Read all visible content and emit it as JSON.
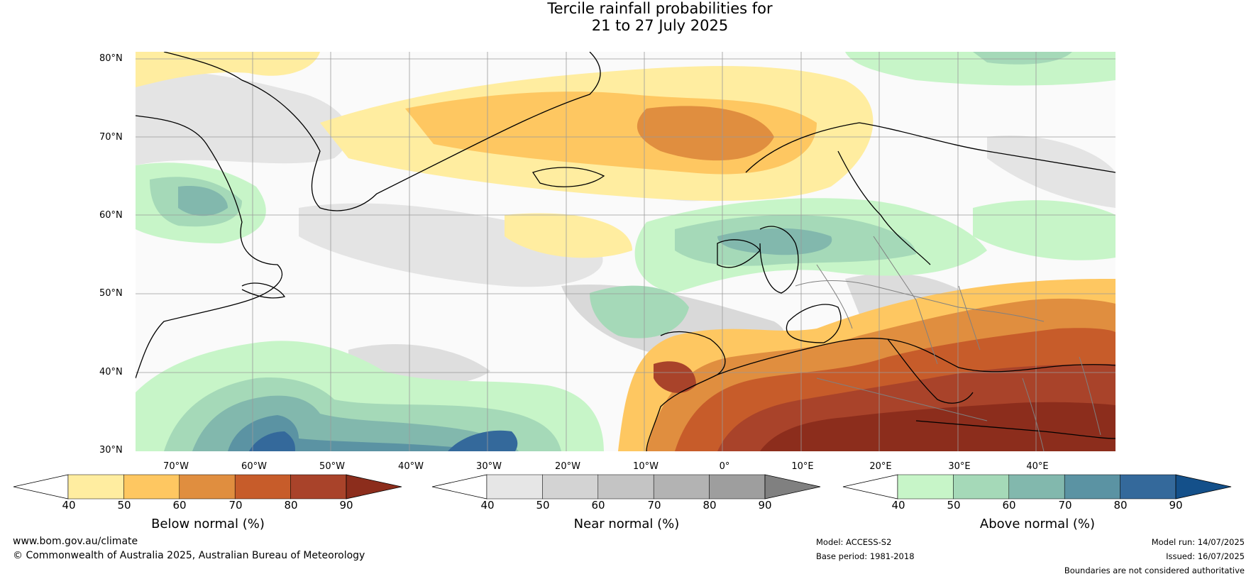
{
  "title_line1": "Tercile rainfall probabilities for",
  "title_line2": "21 to 27 July 2025",
  "lat_labels": [
    "80°N",
    "70°N",
    "60°N",
    "50°N",
    "40°N",
    "30°N"
  ],
  "lon_labels": [
    "70°W",
    "60°W",
    "50°W",
    "40°W",
    "30°W",
    "20°W",
    "10°W",
    "0°",
    "10°E",
    "20°E",
    "30°E",
    "40°E"
  ],
  "colorbars": [
    {
      "title": "Below normal (%)",
      "ticks": [
        "40",
        "50",
        "60",
        "70",
        "80",
        "90"
      ],
      "colors": [
        "#ffffff",
        "#ffeda0",
        "#fec761",
        "#e08e3f",
        "#c75c2a",
        "#a9432a",
        "#8c2d1c"
      ]
    },
    {
      "title": "Near normal (%)",
      "ticks": [
        "40",
        "50",
        "60",
        "70",
        "80",
        "90"
      ],
      "colors": [
        "#ffffff",
        "#e6e6e6",
        "#d3d3d3",
        "#c4c4c4",
        "#b3b3b3",
        "#9e9e9e",
        "#808080"
      ]
    },
    {
      "title": "Above normal (%)",
      "ticks": [
        "40",
        "50",
        "60",
        "70",
        "80",
        "90"
      ],
      "colors": [
        "#ffffff",
        "#c7f5c8",
        "#a5d9b8",
        "#82b8ad",
        "#5b93a3",
        "#34699b",
        "#14508a"
      ]
    }
  ],
  "footer": {
    "website": "www.bom.gov.au/climate",
    "copyright": "© Commonwealth of Australia 2025, Australian Bureau of Meteorology",
    "model": "Model: ACCESS-S2",
    "base_period": "Base period: 1981-2018",
    "model_run": "Model run: 14/07/2025",
    "issued": "Issued: 16/07/2025",
    "disclaimer": "Boundaries are not considered authoritative"
  }
}
